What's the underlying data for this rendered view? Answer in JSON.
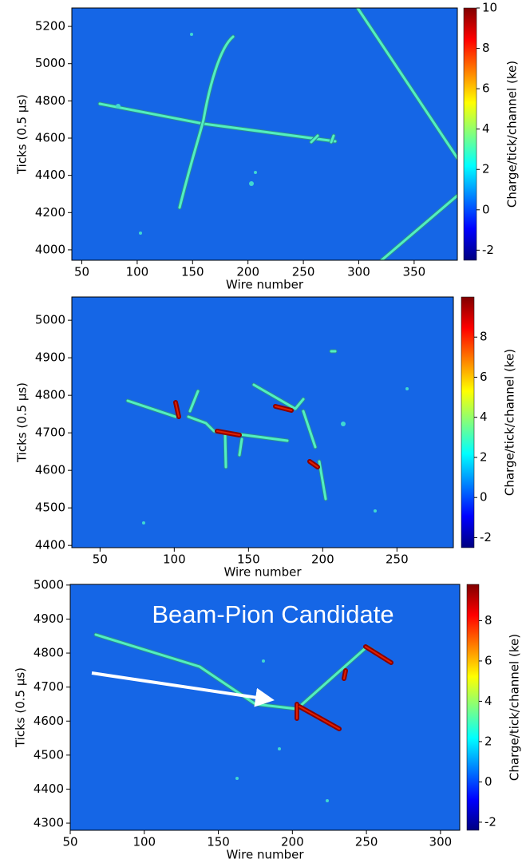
{
  "chart_data": [
    {
      "type": "heatmap",
      "xlabel": "Wire number",
      "ylabel": "Ticks (0.5 μs)",
      "xlim": [
        41,
        389
      ],
      "xticks": [
        50,
        100,
        150,
        200,
        250,
        300,
        350
      ],
      "ylim": [
        3944,
        5299
      ],
      "yticks": [
        4000,
        4200,
        4400,
        4600,
        4800,
        5000,
        5200
      ],
      "colorbar": {
        "label": "Charge/tick/channel (ke)",
        "lim": [
          -2.5,
          10
        ],
        "ticks": [
          -2,
          0,
          2,
          4,
          6,
          8,
          10
        ]
      }
    },
    {
      "type": "heatmap",
      "xlabel": "Wire number",
      "ylabel": "Ticks (0.5 μs)",
      "xlim": [
        31,
        288
      ],
      "xticks": [
        50,
        100,
        150,
        200,
        250
      ],
      "ylim": [
        4394,
        5062
      ],
      "yticks": [
        4400,
        4500,
        4600,
        4700,
        4800,
        4900,
        5000
      ],
      "colorbar": {
        "label": "Charge/tick/channel (ke)",
        "lim": [
          -2.5,
          10
        ],
        "ticks": [
          -2,
          0,
          2,
          4,
          6,
          8
        ]
      }
    },
    {
      "type": "heatmap",
      "xlabel": "Wire number",
      "ylabel": "Ticks (0.5 μs)",
      "xlim": [
        50,
        313
      ],
      "xticks": [
        50,
        100,
        150,
        200,
        250,
        300
      ],
      "ylim": [
        4279,
        5002
      ],
      "yticks": [
        4300,
        4400,
        4500,
        4600,
        4700,
        4800,
        4900,
        5000
      ],
      "colorbar": {
        "label": "Charge/tick/channel (ke)",
        "lim": [
          -2.4,
          9.8
        ],
        "ticks": [
          -2,
          0,
          2,
          4,
          6,
          8
        ]
      },
      "annotation": "Beam-Pion Candidate"
    }
  ]
}
